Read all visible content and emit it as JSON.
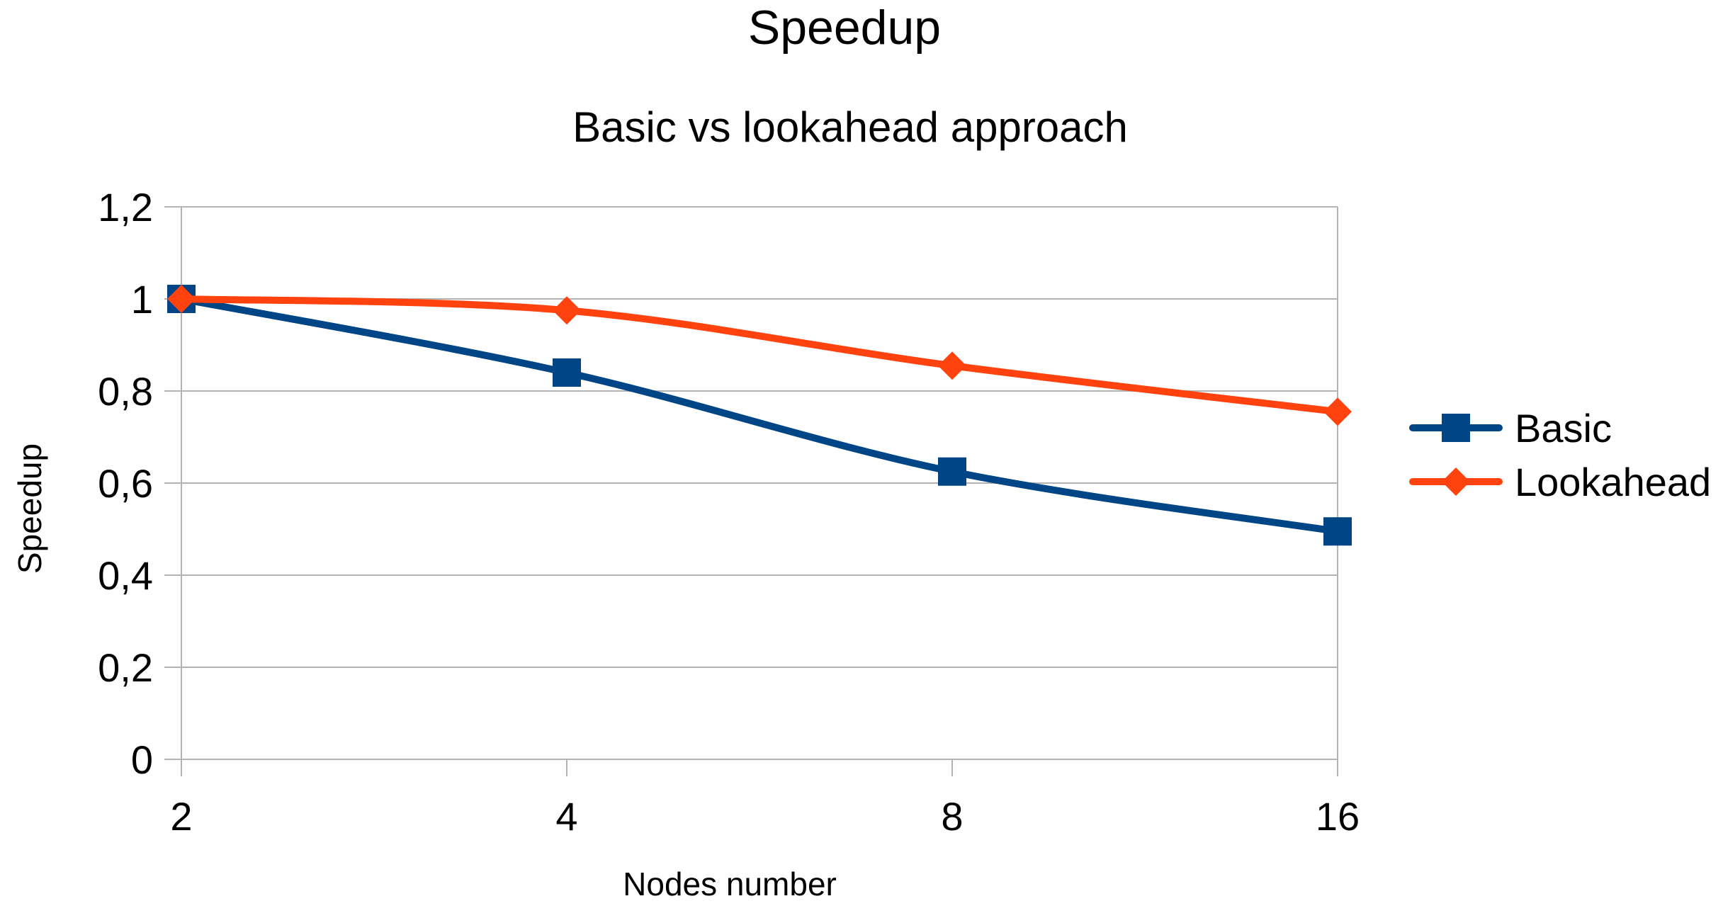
{
  "chart_data": {
    "type": "line",
    "title": "Speedup",
    "subtitle": "Basic vs lookahead approach",
    "xlabel": "Nodes number",
    "ylabel": "Speedup",
    "categories": [
      "2",
      "4",
      "8",
      "16"
    ],
    "y_ticks": [
      "0",
      "0,2",
      "0,4",
      "0,6",
      "0,8",
      "1",
      "1,2"
    ],
    "ylim": [
      0,
      1.2
    ],
    "y_step": 0.2,
    "grid": true,
    "smooth": true,
    "legend": "right",
    "series": [
      {
        "name": "Basic",
        "color": "#004586",
        "marker": "square",
        "values": [
          1.0,
          0.84,
          0.625,
          0.495
        ]
      },
      {
        "name": "Lookahead",
        "color": "#ff420e",
        "marker": "diamond",
        "values": [
          1.0,
          0.975,
          0.855,
          0.755
        ]
      }
    ]
  }
}
